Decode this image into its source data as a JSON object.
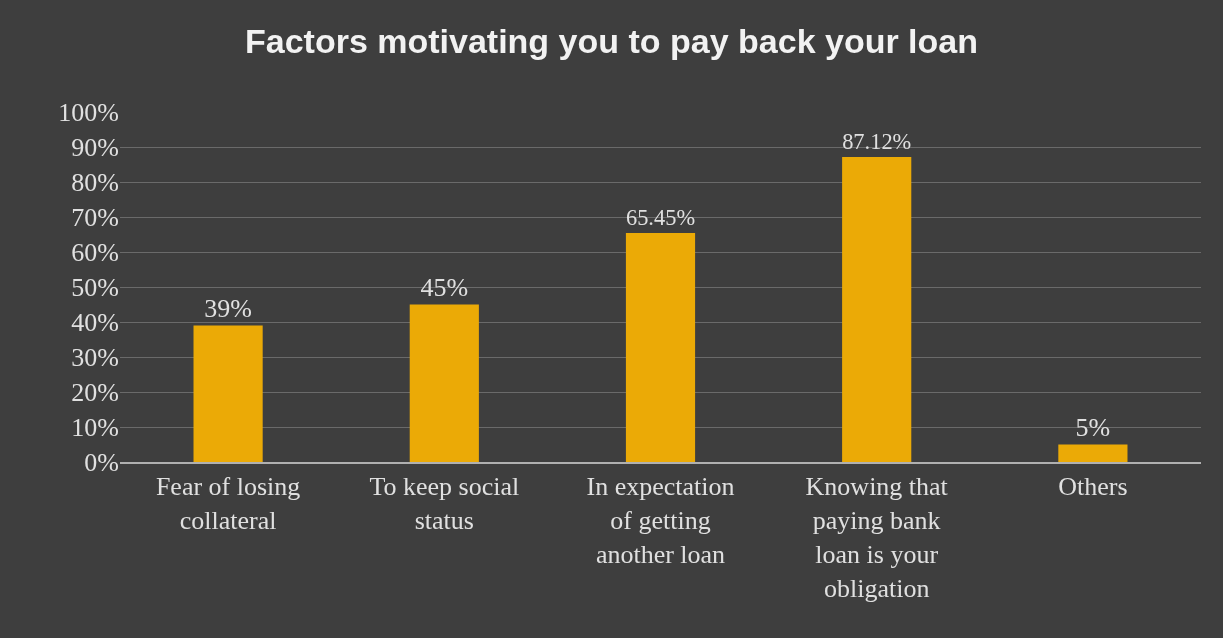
{
  "chart_data": {
    "type": "bar",
    "title": "Factors motivating you to pay back your loan",
    "categories": [
      "Fear of losing collateral",
      "To keep social status",
      "In expectation of getting another loan",
      "Knowing that paying bank loan is your obligation",
      "Others"
    ],
    "values": [
      39,
      45,
      65.45,
      87.12,
      5
    ],
    "value_labels": [
      "39%",
      "45%",
      "65.45%",
      "87.12%",
      "5%"
    ],
    "color": "#ebaa06",
    "ylim": [
      0,
      100
    ],
    "yticks": [
      {
        "value": 0,
        "label": "0%"
      },
      {
        "value": 10,
        "label": "10%"
      },
      {
        "value": 20,
        "label": "20%"
      },
      {
        "value": 30,
        "label": "30%"
      },
      {
        "value": 40,
        "label": "40%"
      },
      {
        "value": 50,
        "label": "50%"
      },
      {
        "value": 60,
        "label": "60%"
      },
      {
        "value": 70,
        "label": "70%"
      },
      {
        "value": 80,
        "label": "80%"
      },
      {
        "value": 90,
        "label": "90%"
      },
      {
        "value": 100,
        "label": "100%"
      }
    ],
    "grid": "y",
    "legend": false
  }
}
